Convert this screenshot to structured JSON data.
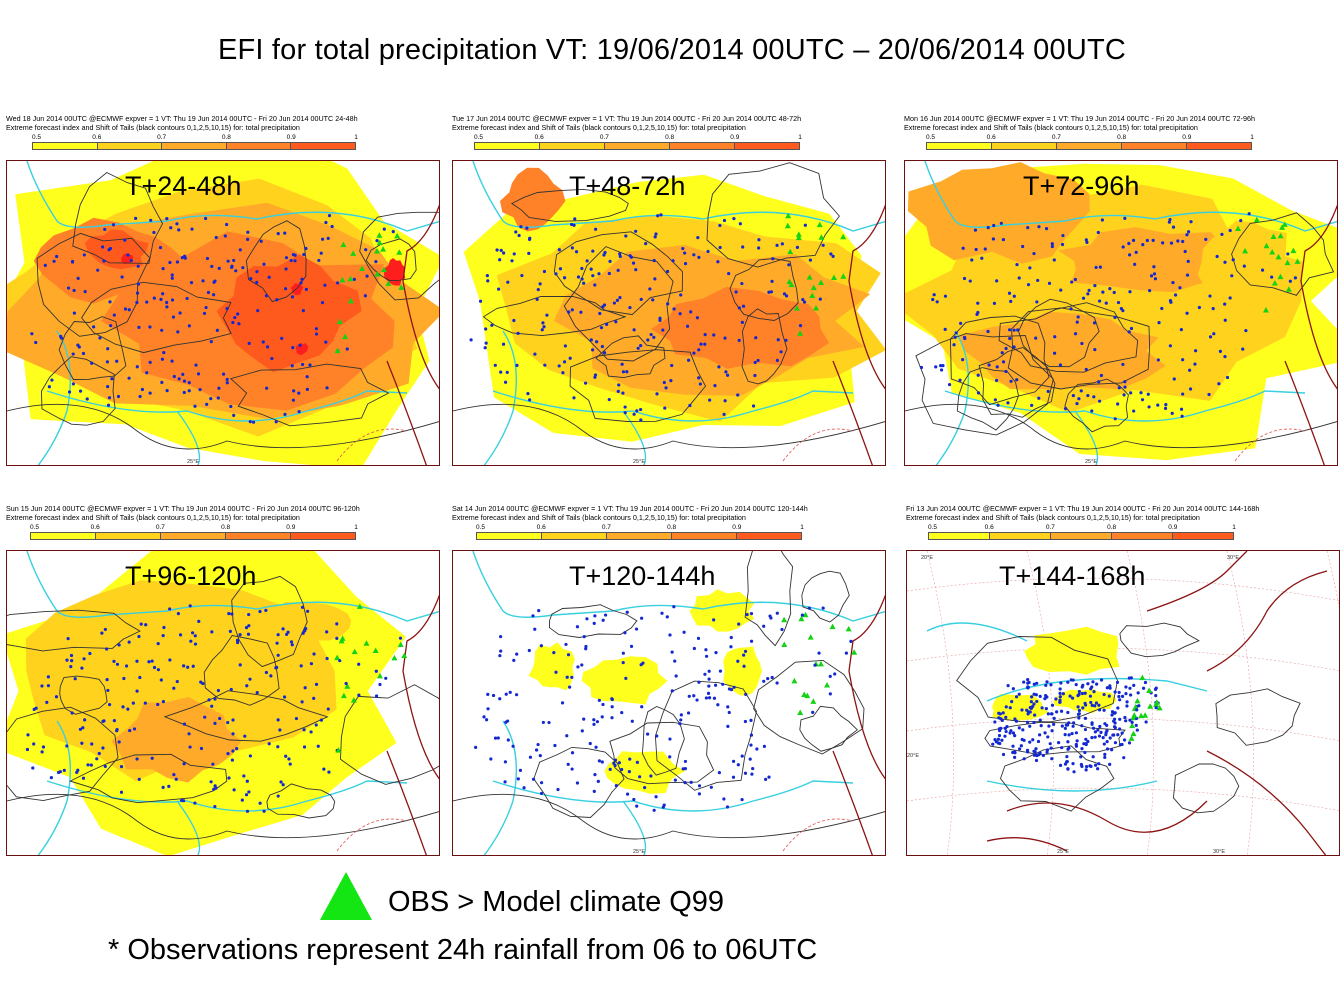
{
  "title": "EFI for total precipitation VT: 19/06/2014 00UTC – 20/06/2014 00UTC",
  "colorbar": {
    "ticks": [
      "0.5",
      "0.6",
      "0.7",
      "0.8",
      "0.9",
      "1"
    ],
    "colors": [
      "#ffff1e",
      "#ffd21e",
      "#ffaa28",
      "#ff8228",
      "#ff5a1e"
    ]
  },
  "colors": {
    "efi_05": "#ffff1e",
    "efi_06": "#ffd21e",
    "efi_07": "#ffaa28",
    "efi_08": "#ff8228",
    "efi_09": "#ff5a1e",
    "efi_10": "#ff1e1e",
    "obs_dot": "#1428d2",
    "obs_q99": "#14d214",
    "coast": "#38d0e0",
    "border": "#8c1414",
    "contour": "#333333"
  },
  "panels": [
    {
      "lead": "T+24-48h",
      "header1": "Wed 18 Jun 2014 00UTC @ECMWF expver = 1 VT: Thu 19 Jun 2014 00UTC - Fri 20 Jun 2014 00UTC  24-48h",
      "header2": "Extreme forecast index and Shift of Tails (black contours 0,1,2,5,10,15) for: total precipitation",
      "lon_label": "25°E",
      "max_efi": 1.0
    },
    {
      "lead": "T+48-72h",
      "header1": "Tue 17 Jun 2014 00UTC @ECMWF expver = 1 VT: Thu 19 Jun 2014 00UTC - Fri 20 Jun 2014 00UTC  48-72h",
      "header2": "Extreme forecast index and Shift of Tails (black contours 0,1,2,5,10,15) for: total precipitation",
      "lon_label": "25°E",
      "max_efi": 0.9
    },
    {
      "lead": "T+72-96h",
      "header1": "Mon 16 Jun 2014 00UTC @ECMWF expver = 1 VT: Thu 19 Jun 2014 00UTC - Fri 20 Jun 2014 00UTC  72-96h",
      "header2": "Extreme forecast index and Shift of Tails (black contours 0,1,2,5,10,15) for: total precipitation",
      "lon_label": "25°E",
      "max_efi": 0.8
    },
    {
      "lead": "T+96-120h",
      "header1": "Sun 15 Jun 2014 00UTC @ECMWF expver = 1 VT: Thu 19 Jun 2014 00UTC - Fri 20 Jun 2014 00UTC  96-120h",
      "header2": "Extreme forecast index and Shift of Tails (black contours 0,1,2,5,10,15) for: total precipitation",
      "lon_label": "",
      "max_efi": 0.8
    },
    {
      "lead": "T+120-144h",
      "header1": "Sat 14 Jun 2014 00UTC @ECMWF expver = 1 VT: Thu 19 Jun 2014 00UTC - Fri 20 Jun 2014 00UTC  120-144h",
      "header2": "Extreme forecast index and Shift of Tails (black contours 0,1,2,5,10,15) for: total precipitation",
      "lon_label": "25°E",
      "max_efi": 0.6
    },
    {
      "lead": "T+144-168h",
      "header1": "Fri 13 Jun 2014 00UTC @ECMWF expver = 1 VT: Thu 19 Jun 2014 00UTC - Fri 20 Jun 2014 00UTC  144-168h",
      "header2": "Extreme forecast index and Shift of Tails (black contours 0,1,2,5,10,15) for: total precipitation",
      "lon_label": "25°E",
      "lon_label2": "30°E",
      "lon_top": "20°E",
      "lon_top2": "30°E",
      "lat_label": "20°E",
      "max_efi": 0.6
    }
  ],
  "legend": {
    "symbol": "green-triangle",
    "text": "OBS > Model climate Q99"
  },
  "footnote": "* Observations represent 24h rainfall from 06 to 06UTC"
}
